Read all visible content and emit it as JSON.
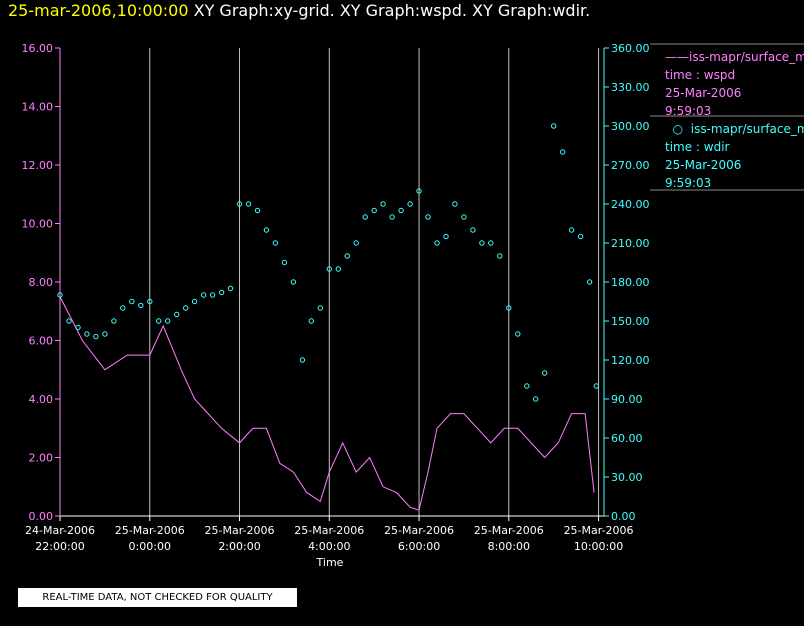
{
  "header": {
    "datetime": "25-mar-2006,10:00:00",
    "graphs": "XY Graph:xy-grid.  XY Graph:wspd.  XY Graph:wdir."
  },
  "legend": {
    "wspd": {
      "label": "iss-mapr/surface_m",
      "line1": "time : wspd",
      "line2": "25-Mar-2006",
      "line3": "9:59:03",
      "color": "#ff80ff"
    },
    "wdir": {
      "label": "iss-mapr/surface_m",
      "line1": "time : wdir",
      "line2": "25-Mar-2006",
      "line3": "9:59:03",
      "color": "#40ffff"
    }
  },
  "notice": "REAL-TIME DATA, NOT CHECKED FOR QUALITY",
  "chart_data": {
    "type": "line",
    "xlabel": "Time",
    "x_range_hours": [
      -2,
      10
    ],
    "x_ticks": [
      {
        "h": -2,
        "date": "24-Mar-2006",
        "time": "22:00:00"
      },
      {
        "h": 0,
        "date": "25-Mar-2006",
        "time": "0:00:00"
      },
      {
        "h": 2,
        "date": "25-Mar-2006",
        "time": "2:00:00"
      },
      {
        "h": 4,
        "date": "25-Mar-2006",
        "time": "4:00:00"
      },
      {
        "h": 6,
        "date": "25-Mar-2006",
        "time": "6:00:00"
      },
      {
        "h": 8,
        "date": "25-Mar-2006",
        "time": "8:00:00"
      },
      {
        "h": 10,
        "date": "25-Mar-2006",
        "time": "10:00:00"
      }
    ],
    "y_left": {
      "name": "wspd",
      "ylim": [
        0,
        16
      ],
      "ticks": [
        "0.00",
        "2.00",
        "4.00",
        "6.00",
        "8.00",
        "10.00",
        "12.00",
        "14.00",
        "16.00"
      ]
    },
    "y_right": {
      "name": "wdir",
      "ylim": [
        0,
        360
      ],
      "ticks": [
        "0.00",
        "30.00",
        "60.00",
        "90.00",
        "120.00",
        "150.00",
        "180.00",
        "210.00",
        "240.00",
        "270.00",
        "300.00",
        "330.00",
        "360.00"
      ]
    },
    "series": [
      {
        "name": "wspd",
        "style": "line",
        "color": "#ff80ff",
        "x": [
          -2.0,
          -1.5,
          -1.0,
          -0.5,
          0.0,
          0.3,
          0.7,
          1.0,
          1.3,
          1.6,
          2.0,
          2.3,
          2.6,
          2.9,
          3.2,
          3.5,
          3.8,
          4.0,
          4.3,
          4.6,
          4.9,
          5.2,
          5.5,
          5.8,
          6.0,
          6.2,
          6.4,
          6.7,
          7.0,
          7.3,
          7.6,
          7.9,
          8.2,
          8.5,
          8.8,
          9.1,
          9.4,
          9.7,
          9.9
        ],
        "y": [
          7.5,
          6.0,
          5.0,
          5.5,
          5.5,
          6.5,
          5.0,
          4.0,
          3.5,
          3.0,
          2.5,
          3.0,
          3.0,
          1.8,
          1.5,
          0.8,
          0.5,
          1.5,
          2.5,
          1.5,
          2.0,
          1.0,
          0.8,
          0.3,
          0.2,
          1.5,
          3.0,
          3.5,
          3.5,
          3.0,
          2.5,
          3.0,
          3.0,
          2.5,
          2.0,
          2.5,
          3.5,
          3.5,
          0.8
        ]
      },
      {
        "name": "wdir",
        "style": "scatter",
        "color": "#40ffff",
        "x": [
          -2.0,
          -1.8,
          -1.6,
          -1.4,
          -1.2,
          -1.0,
          -0.8,
          -0.6,
          -0.4,
          -0.2,
          0.0,
          0.2,
          0.4,
          0.6,
          0.8,
          1.0,
          1.2,
          1.4,
          1.6,
          1.8,
          2.0,
          2.2,
          2.4,
          2.6,
          2.8,
          3.0,
          3.2,
          3.4,
          3.6,
          3.8,
          4.0,
          4.2,
          4.4,
          4.6,
          4.8,
          5.0,
          5.2,
          5.4,
          5.6,
          5.8,
          6.0,
          6.2,
          6.4,
          6.6,
          6.8,
          7.0,
          7.2,
          7.4,
          7.6,
          7.8,
          8.0,
          8.2,
          8.4,
          8.6,
          8.8,
          9.0,
          9.2,
          9.4,
          9.6,
          9.8,
          9.95
        ],
        "y": [
          170,
          150,
          145,
          140,
          138,
          140,
          150,
          160,
          165,
          162,
          165,
          150,
          150,
          155,
          160,
          165,
          170,
          170,
          172,
          175,
          240,
          240,
          235,
          220,
          210,
          195,
          180,
          120,
          150,
          160,
          190,
          190,
          200,
          210,
          230,
          235,
          240,
          230,
          235,
          240,
          250,
          230,
          210,
          215,
          240,
          230,
          220,
          210,
          210,
          200,
          160,
          140,
          100,
          90,
          110,
          300,
          280,
          220,
          215,
          180,
          100
        ]
      }
    ]
  }
}
